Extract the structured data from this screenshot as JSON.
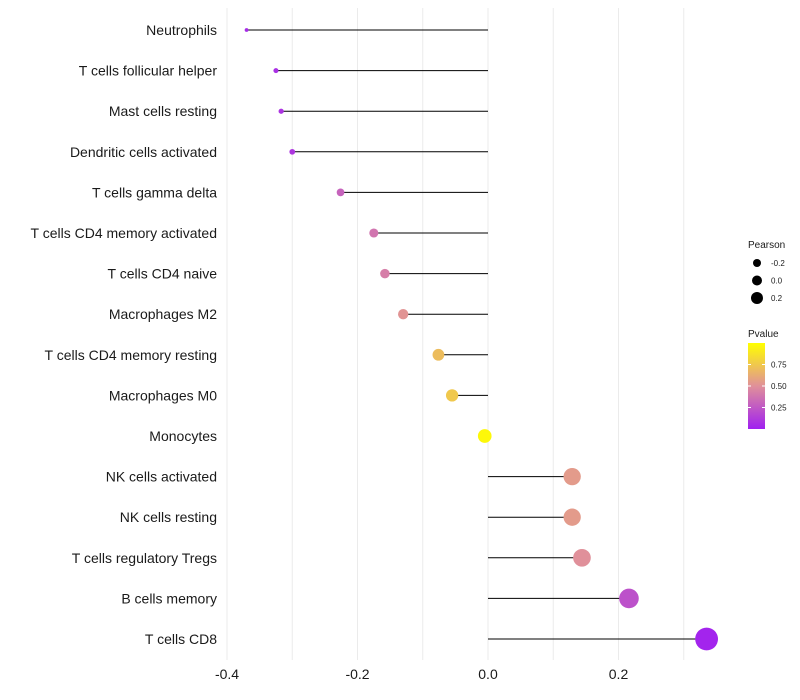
{
  "chart_data": {
    "type": "lollipop",
    "orientation": "horizontal",
    "title": "",
    "xlabel": "",
    "ylabel": "",
    "xlim": [
      -0.41,
      0.35
    ],
    "x_ticks": [
      -0.4,
      -0.2,
      0.0,
      0.2
    ],
    "x_tick_labels": [
      "-0.4",
      "-0.2",
      "0.0",
      "0.2"
    ],
    "grid": "vertical",
    "categories": [
      "Neutrophils",
      "T cells follicular helper",
      "Mast cells resting",
      "Dendritic cells activated",
      "T cells gamma delta",
      "T cells CD4 memory activated",
      "T cells CD4 naive",
      "Macrophages M2",
      "T cells CD4 memory resting",
      "Macrophages M0",
      "Monocytes",
      "NK cells activated",
      "NK cells resting",
      "T cells regulatory  Tregs ",
      "B cells memory",
      "T cells CD8"
    ],
    "pearson": [
      -0.37,
      -0.325,
      -0.317,
      -0.3,
      -0.226,
      -0.175,
      -0.158,
      -0.13,
      -0.076,
      -0.055,
      -0.005,
      0.129,
      0.129,
      0.144,
      0.216,
      0.335
    ],
    "pvalue": [
      0.05,
      0.07,
      0.09,
      0.1,
      0.3,
      0.38,
      0.42,
      0.52,
      0.7,
      0.75,
      0.97,
      0.55,
      0.55,
      0.5,
      0.22,
      0.02
    ],
    "legend": {
      "position": "right",
      "size_title": "Pearson",
      "size_entries": [
        "-0.2",
        "0.0",
        "0.2"
      ],
      "color_title": "Pvalue",
      "color_ticks": [
        "0.75",
        "0.50",
        "0.25"
      ],
      "color_tick_values": [
        0.75,
        0.5,
        0.25
      ],
      "color_range": [
        0.0,
        1.0
      ]
    },
    "colors": {
      "low": "#a020f0",
      "mid": "#e0909a",
      "high": "#ffff00",
      "stem": "#000000",
      "grid": "#ebebeb"
    }
  }
}
